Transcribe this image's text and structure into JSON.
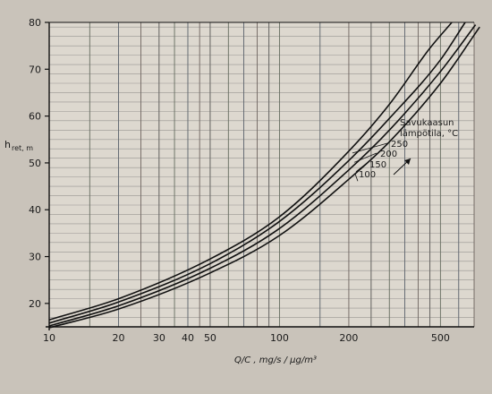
{
  "chart_data": {
    "type": "line",
    "x_scale": "log",
    "xlim": [
      10,
      700
    ],
    "ylim": [
      15,
      80
    ],
    "x_ticks": [
      10,
      20,
      30,
      40,
      50,
      100,
      200,
      500
    ],
    "x_tick_labels": [
      "10",
      "20",
      "30",
      "40",
      "50",
      "100",
      "200",
      "500"
    ],
    "x_grid": [
      10,
      15,
      20,
      25,
      30,
      35,
      40,
      45,
      50,
      60,
      70,
      80,
      90,
      100,
      150,
      200,
      250,
      300,
      350,
      400,
      450,
      500,
      600,
      700
    ],
    "y_ticks": [
      20,
      30,
      40,
      50,
      60,
      70,
      80
    ],
    "y_tick_labels": [
      "20",
      "30",
      "40",
      "50",
      "60",
      "70",
      "80"
    ],
    "ylabel": "h",
    "ylabel_sub": "ret, m",
    "xlabel": "Q/C , mg/s / μg/m³",
    "legend_title_line1": "Savukaasun",
    "legend_title_line2": "lämpötila, °C",
    "grid": true,
    "series": [
      {
        "name": "250",
        "x": [
          10,
          20,
          50,
          100,
          200,
          300,
          450,
          560
        ],
        "y": [
          16.5,
          21.0,
          29.5,
          38.5,
          52.5,
          62.5,
          74.5,
          80
        ]
      },
      {
        "name": "200",
        "x": [
          10,
          20,
          50,
          100,
          200,
          300,
          500,
          640
        ],
        "y": [
          15.8,
          20.3,
          28.5,
          37.5,
          50.5,
          59.5,
          72.0,
          80
        ]
      },
      {
        "name": "150",
        "x": [
          10,
          20,
          50,
          100,
          200,
          300,
          500,
          710
        ],
        "y": [
          15.2,
          19.5,
          27.5,
          36.0,
          48.5,
          57.0,
          69.5,
          79.5
        ]
      },
      {
        "name": "100",
        "x": [
          10,
          20,
          50,
          100,
          200,
          300,
          500,
          740
        ],
        "y": [
          14.8,
          18.8,
          26.5,
          34.5,
          46.5,
          54.5,
          67.0,
          79.0
        ]
      }
    ]
  }
}
